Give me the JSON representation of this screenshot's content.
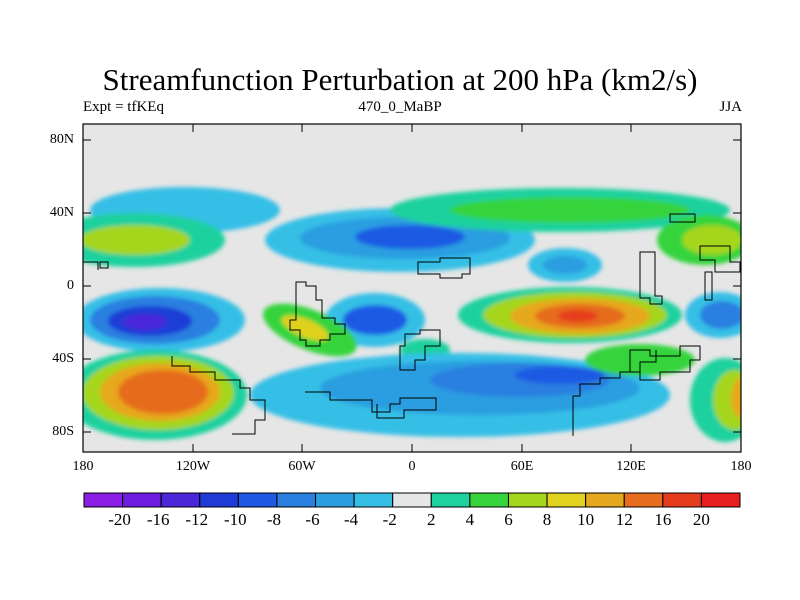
{
  "title": "Streamfunction Perturbation at 200 hPa (km2/s)",
  "left_string": "Expt = tfKEq",
  "center_string": "470_0_MaBP",
  "right_string": "JJA",
  "y_axis": {
    "labels": [
      "80N",
      "40N",
      "0",
      "40S",
      "80S"
    ],
    "values": [
      80,
      40,
      0,
      -40,
      -80
    ]
  },
  "x_axis": {
    "labels": [
      "180",
      "120W",
      "60W",
      "0",
      "60E",
      "120E",
      "180"
    ],
    "values": [
      -180,
      -120,
      -60,
      0,
      60,
      120,
      180
    ]
  },
  "map": {
    "lon_range": [
      -180,
      180
    ],
    "lat_range": [
      -90,
      90
    ],
    "background": "#e6e6e6",
    "outline_color": "#000000"
  },
  "colorbar": {
    "colors": [
      "#8c1fe6",
      "#6e1ee0",
      "#4a28d9",
      "#1f3cd6",
      "#1e5ae3",
      "#2b7fe0",
      "#2b9ee0",
      "#36bfe6",
      "#e6e6e6",
      "#1ed19e",
      "#36d43c",
      "#a5d61e",
      "#e0d21e",
      "#e6a81e",
      "#e66c1e",
      "#e63c1e",
      "#e61e1e"
    ],
    "labels": [
      "-20",
      "-16",
      "-12",
      "-10",
      "-8",
      "-6",
      "-4",
      "-2",
      "2",
      "4",
      "6",
      "8",
      "10",
      "12",
      "16",
      "20"
    ]
  }
}
